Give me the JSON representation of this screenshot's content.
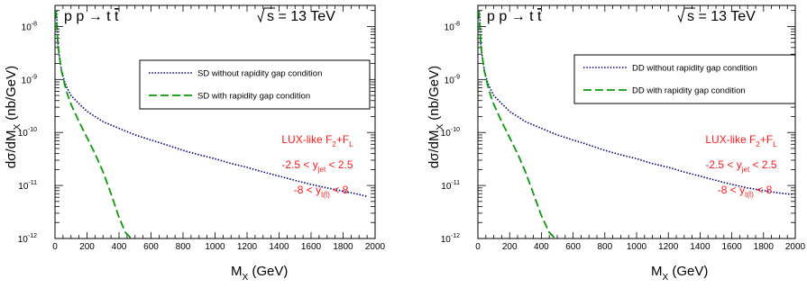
{
  "chart_data": [
    {
      "type": "line",
      "process": {
        "lhs": "p p",
        "arrow": "→",
        "rhs_t": "t",
        "rhs_tbar": "t"
      },
      "energy": {
        "label": "s",
        "value": "= 13 TeV"
      },
      "xlabel": {
        "main": "M",
        "sub": "X",
        "unit": "(GeV)"
      },
      "ylabel": {
        "main": "dσ/dM",
        "sub": "X",
        "unit": "(nb/GeV)"
      },
      "xlim": [
        0,
        2000
      ],
      "ylim": [
        1e-12,
        2.5e-08
      ],
      "y_scale": "log",
      "x_ticks": [
        "0",
        "200",
        "400",
        "600",
        "800",
        "1000",
        "1200",
        "1400",
        "1600",
        "1800",
        "2000"
      ],
      "y_ticks": [
        {
          "base": "10",
          "exp": "-12"
        },
        {
          "base": "10",
          "exp": "-11"
        },
        {
          "base": "10",
          "exp": "-10"
        },
        {
          "base": "10",
          "exp": "-9"
        },
        {
          "base": "10",
          "exp": "-8"
        }
      ],
      "legend_position": "upper-right",
      "series": [
        {
          "name": "SD without rapidity gap condition",
          "style": "dotted",
          "color": "#00007a",
          "x": [
            10,
            20,
            40,
            60,
            80,
            100,
            150,
            200,
            300,
            400,
            500,
            600,
            700,
            800,
            900,
            1000,
            1100,
            1200,
            1300,
            1400,
            1500,
            1600,
            1700,
            1800,
            1900,
            1950
          ],
          "y": [
            2e-08,
            4e-09,
            1.5e-09,
            9e-10,
            6.5e-10,
            5e-10,
            3.5e-10,
            2.5e-10,
            1.6e-10,
            1.2e-10,
            9e-11,
            7.2e-11,
            5.8e-11,
            4.6e-11,
            3.8e-11,
            3.2e-11,
            2.6e-11,
            2.2e-11,
            1.8e-11,
            1.5e-11,
            1.25e-11,
            1.05e-11,
            9e-12,
            7.8e-12,
            6.8e-12,
            6.2e-12
          ]
        },
        {
          "name": "SD with rapidity gap condition",
          "style": "dashed",
          "color": "#0a9a0a",
          "x": [
            5,
            20,
            40,
            60,
            80,
            100,
            150,
            200,
            250,
            300,
            350,
            400,
            440,
            470,
            490
          ],
          "y": [
            2e-08,
            4e-09,
            1.5e-09,
            8e-10,
            5e-10,
            3.4e-10,
            1.6e-10,
            8e-11,
            4e-11,
            1.8e-11,
            7e-12,
            2.5e-12,
            1.3e-12,
            1.05e-12,
            1e-12
          ]
        }
      ],
      "annotation": {
        "lux": "LUX-like F",
        "lux_sub1": "2",
        "lux_plus": "+F",
        "lux_sub2": "L",
        "yjet_pre": "-2.5 < y",
        "yjet_sub": "jet",
        "yjet_post": "< 2.5",
        "yt_pre": "-8 < y",
        "yt_sub": "t(t̄)",
        "yt_post": "< 8",
        "color": "#ff1a1a"
      }
    },
    {
      "type": "line",
      "process": {
        "lhs": "p p",
        "arrow": "→",
        "rhs_t": "t",
        "rhs_tbar": "t"
      },
      "energy": {
        "label": "s",
        "value": "= 13 TeV"
      },
      "xlabel": {
        "main": "M",
        "sub": "X",
        "unit": "(GeV)"
      },
      "ylabel": {
        "main": "dσ/dM",
        "sub": "X",
        "unit": "(nb/GeV)"
      },
      "xlim": [
        0,
        2000
      ],
      "ylim": [
        1e-12,
        2.5e-08
      ],
      "y_scale": "log",
      "x_ticks": [
        "0",
        "200",
        "400",
        "600",
        "800",
        "1000",
        "1200",
        "1400",
        "1600",
        "1800",
        "2000"
      ],
      "y_ticks": [
        {
          "base": "10",
          "exp": "-12"
        },
        {
          "base": "10",
          "exp": "-11"
        },
        {
          "base": "10",
          "exp": "-10"
        },
        {
          "base": "10",
          "exp": "-9"
        },
        {
          "base": "10",
          "exp": "-8"
        }
      ],
      "legend_position": "upper-right",
      "series": [
        {
          "name": "DD without rapidity gap condition",
          "style": "dotted",
          "color": "#00007a",
          "x": [
            10,
            20,
            40,
            60,
            80,
            100,
            150,
            200,
            300,
            400,
            500,
            600,
            700,
            800,
            900,
            1000,
            1100,
            1200,
            1300,
            1400,
            1500,
            1600,
            1700,
            1800,
            1900,
            1980
          ],
          "y": [
            2e-08,
            4e-09,
            1.5e-09,
            9e-10,
            6.5e-10,
            5e-10,
            3.5e-10,
            2.5e-10,
            1.6e-10,
            1.2e-10,
            9e-11,
            7.2e-11,
            5.8e-11,
            4.6e-11,
            3.8e-11,
            3.2e-11,
            2.6e-11,
            2.2e-11,
            1.8e-11,
            1.5e-11,
            1.25e-11,
            1.05e-11,
            9e-12,
            8e-12,
            7.2e-12,
            6.8e-12
          ]
        },
        {
          "name": "DD with rapidity gap condition",
          "style": "dashed",
          "color": "#0a9a0a",
          "x": [
            5,
            20,
            40,
            60,
            80,
            100,
            150,
            200,
            250,
            300,
            350,
            400,
            450,
            480,
            500
          ],
          "y": [
            2e-08,
            4e-09,
            1.5e-09,
            8e-10,
            5e-10,
            3.4e-10,
            1.6e-10,
            8e-11,
            4e-11,
            1.8e-11,
            7e-12,
            2.7e-12,
            1.3e-12,
            1.05e-12,
            1e-12
          ]
        }
      ],
      "annotation": {
        "lux": "LUX-like F",
        "lux_sub1": "2",
        "lux_plus": "+F",
        "lux_sub2": "L",
        "yjet_pre": "-2.5 < y",
        "yjet_sub": "jet",
        "yjet_post": "< 2.5",
        "yt_pre": "-8 < y",
        "yt_sub": "t(t̄)",
        "yt_post": "< 8",
        "color": "#ff1a1a"
      }
    }
  ]
}
